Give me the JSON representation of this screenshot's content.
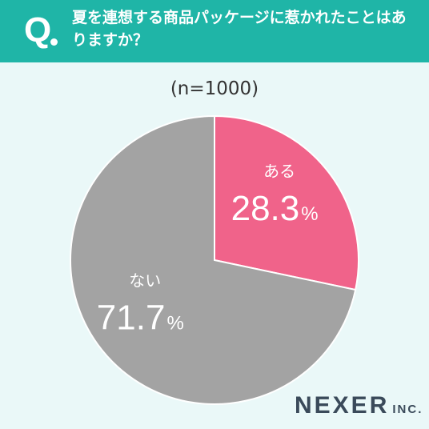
{
  "header": {
    "q_mark": "Q",
    "question": "夏を連想する商品パッケージに惹かれたことはありますか？"
  },
  "sample": "(n=1000)",
  "brand": {
    "name": "NEXER",
    "suffix": "INC."
  },
  "colors": {
    "header": "#1fb5a7",
    "yes": "#f0638a",
    "no": "#a3a3a3",
    "background": "#eaf8f8"
  },
  "chart_data": {
    "type": "pie",
    "title": "",
    "slices": [
      {
        "label": "ある",
        "value": 28.3,
        "display": "28.3",
        "unit": "%",
        "color": "#f0638a"
      },
      {
        "label": "ない",
        "value": 71.7,
        "display": "71.7",
        "unit": "%",
        "color": "#a3a3a3"
      }
    ],
    "start": "12 o'clock",
    "direction": "clockwise"
  }
}
